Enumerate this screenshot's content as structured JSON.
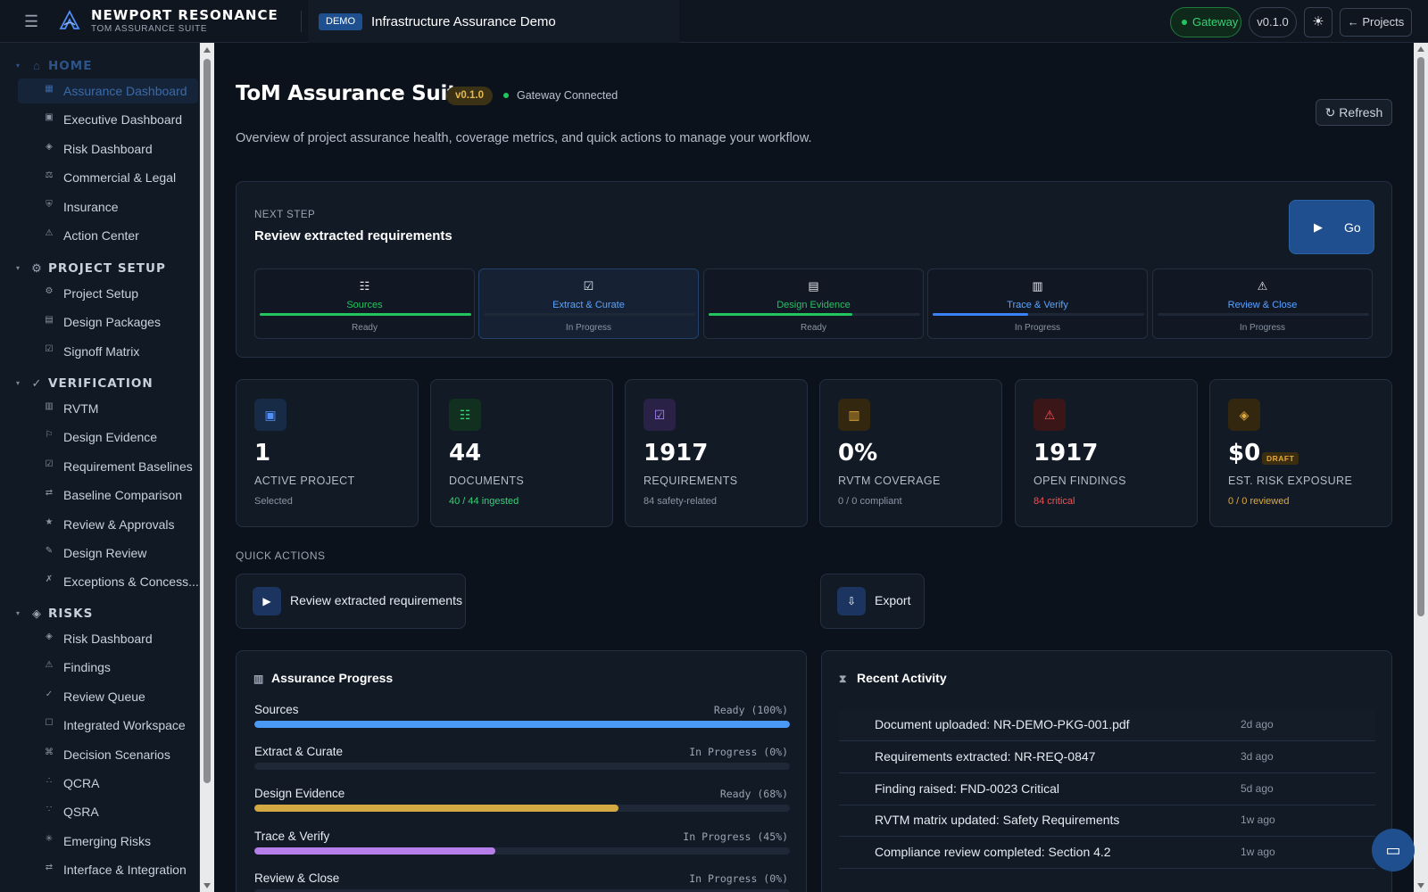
{
  "app": {
    "name": "NEWPORT RESONANCE",
    "suite": "TOM ASSURANCE SUITE",
    "demo_badge": "DEMO",
    "project_title": "Infrastructure Assurance Demo",
    "gateway_label": "Gateway",
    "version": "v0.1.0",
    "theme_icon": "sun-icon",
    "projects_label": "← Projects"
  },
  "sidebar": {
    "sections": [
      {
        "title": "HOME",
        "icon": "home-icon",
        "glyph": "⌂",
        "items": [
          {
            "label": "Assurance Dashboard",
            "glyph": "▦",
            "active": true
          },
          {
            "label": "Executive Dashboard",
            "glyph": "▣"
          },
          {
            "label": "Risk Dashboard",
            "glyph": "◈"
          },
          {
            "label": "Commercial & Legal",
            "glyph": "⚖"
          },
          {
            "label": "Insurance",
            "glyph": "⛨"
          },
          {
            "label": "Action Center",
            "glyph": "⚠"
          }
        ]
      },
      {
        "title": "PROJECT SETUP",
        "icon": "gear-icon",
        "glyph": "⚙",
        "items": [
          {
            "label": "Project Setup",
            "glyph": "⚙"
          },
          {
            "label": "Design Packages",
            "glyph": "▤"
          },
          {
            "label": "Signoff Matrix",
            "glyph": "☑"
          }
        ]
      },
      {
        "title": "VERIFICATION",
        "icon": "check-icon",
        "glyph": "✓",
        "items": [
          {
            "label": "RVTM",
            "glyph": "▥"
          },
          {
            "label": "Design Evidence",
            "glyph": "⚐"
          },
          {
            "label": "Requirement Baselines",
            "glyph": "☑"
          },
          {
            "label": "Baseline Comparison",
            "glyph": "⇄"
          },
          {
            "label": "Review & Approvals",
            "glyph": "★"
          },
          {
            "label": "Design Review",
            "glyph": "✎"
          },
          {
            "label": "Exceptions & Concess...",
            "glyph": "✗"
          }
        ]
      },
      {
        "title": "RISKS",
        "icon": "diamond-icon",
        "glyph": "◈",
        "items": [
          {
            "label": "Risk Dashboard",
            "glyph": "◈"
          },
          {
            "label": "Findings",
            "glyph": "⚠"
          },
          {
            "label": "Review Queue",
            "glyph": "✓"
          },
          {
            "label": "Integrated Workspace",
            "glyph": "☐"
          },
          {
            "label": "Decision Scenarios",
            "glyph": "⌘"
          },
          {
            "label": "QCRA",
            "glyph": "∴"
          },
          {
            "label": "QSRA",
            "glyph": "∵"
          },
          {
            "label": "Emerging Risks",
            "glyph": "✳"
          },
          {
            "label": "Interface & Integration",
            "glyph": "⇄"
          }
        ]
      }
    ]
  },
  "header": {
    "title": "ToM Assurance Suite",
    "version_badge": "v0.1.0",
    "gateway_status": "Gateway Connected",
    "refresh_label": "↻ Refresh",
    "description": "Overview of project assurance health, coverage metrics, and quick actions to manage your workflow."
  },
  "next_step": {
    "label": "NEXT STEP",
    "title": "Review extracted requirements",
    "go_label": "Go",
    "steps": [
      {
        "name": "Sources",
        "glyph": "☷",
        "status": "Ready",
        "progress": 1.0,
        "color": "#22c55e",
        "name_color": "#22c55e"
      },
      {
        "name": "Extract & Curate",
        "glyph": "☑",
        "status": "In Progress",
        "progress": 0.0,
        "color": "#3b82f6",
        "name_color": "#5aa2ff",
        "current": true
      },
      {
        "name": "Design Evidence",
        "glyph": "▤",
        "status": "Ready",
        "progress": 0.68,
        "color": "#22c55e",
        "name_color": "#22c55e"
      },
      {
        "name": "Trace & Verify",
        "glyph": "▥",
        "status": "In Progress",
        "progress": 0.45,
        "color": "#3b82f6",
        "name_color": "#5aa2ff"
      },
      {
        "name": "Review & Close",
        "glyph": "⚠",
        "status": "In Progress",
        "progress": 0.0,
        "color": "#3b82f6",
        "name_color": "#5aa2ff"
      }
    ]
  },
  "stats": [
    {
      "value": "1",
      "label": "ACTIVE PROJECT",
      "sub": "Selected",
      "sub_color": "#8b95a3",
      "glyph": "▣",
      "icon": "project-icon",
      "icon_bg": "#172a46",
      "icon_color": "#4f8ff7"
    },
    {
      "value": "44",
      "label": "DOCUMENTS",
      "sub": "40 / 44 ingested",
      "sub_color": "#34d374",
      "glyph": "☷",
      "icon": "documents-icon",
      "icon_bg": "#12301f",
      "icon_color": "#34d374"
    },
    {
      "value": "1917",
      "label": "REQUIREMENTS",
      "sub": "84 safety-related",
      "sub_color": "#8b95a3",
      "glyph": "☑",
      "icon": "requirements-icon",
      "icon_bg": "#2a2146",
      "icon_color": "#a78bfa"
    },
    {
      "value": "0%",
      "label": "RVTM COVERAGE",
      "sub": "0 / 0 compliant",
      "sub_color": "#8b95a3",
      "glyph": "▥",
      "icon": "coverage-icon",
      "icon_bg": "#33270f",
      "icon_color": "#e0a93a"
    },
    {
      "value": "1917",
      "label": "OPEN FINDINGS",
      "sub": "84 critical",
      "sub_color": "#f05252",
      "glyph": "⚠",
      "icon": "warning-icon",
      "icon_bg": "#3a1618",
      "icon_color": "#f05252"
    },
    {
      "value": "$0",
      "label": "EST. RISK EXPOSURE",
      "sub": "0 / 0 reviewed",
      "sub_color": "#e0a93a",
      "glyph": "◈",
      "icon": "risk-icon",
      "icon_bg": "#33270f",
      "icon_color": "#e0a93a",
      "badge": "DRAFT"
    }
  ],
  "quick_actions": {
    "label": "QUICK ACTIONS",
    "primary": {
      "label": "Review extracted requirements",
      "glyph": "▶"
    },
    "export": {
      "label": "Export",
      "glyph": "⇩"
    }
  },
  "assurance_progress": {
    "title": "Assurance Progress",
    "rows": [
      {
        "name": "Sources",
        "status": "Ready (100%)",
        "progress": 1.0,
        "color": "#4a9af5"
      },
      {
        "name": "Extract & Curate",
        "status": "In Progress (0%)",
        "progress": 0.0,
        "color": "#4a9af5"
      },
      {
        "name": "Design Evidence",
        "status": "Ready (68%)",
        "progress": 0.68,
        "color": "#d4a843"
      },
      {
        "name": "Trace & Verify",
        "status": "In Progress (45%)",
        "progress": 0.45,
        "color": "#b57ee8"
      },
      {
        "name": "Review & Close",
        "status": "In Progress (0%)",
        "progress": 0.0,
        "color": "#4a9af5"
      }
    ]
  },
  "recent_activity": {
    "title": "Recent Activity",
    "items": [
      {
        "text": "Document uploaded: NR-DEMO-PKG-001.pdf",
        "time": "2d ago"
      },
      {
        "text": "Requirements extracted: NR-REQ-0847",
        "time": "3d ago"
      },
      {
        "text": "Finding raised: FND-0023 Critical",
        "time": "5d ago"
      },
      {
        "text": "RVTM matrix updated: Safety Requirements",
        "time": "1w ago"
      },
      {
        "text": "Compliance review completed: Section 4.2",
        "time": "1w ago"
      }
    ]
  }
}
